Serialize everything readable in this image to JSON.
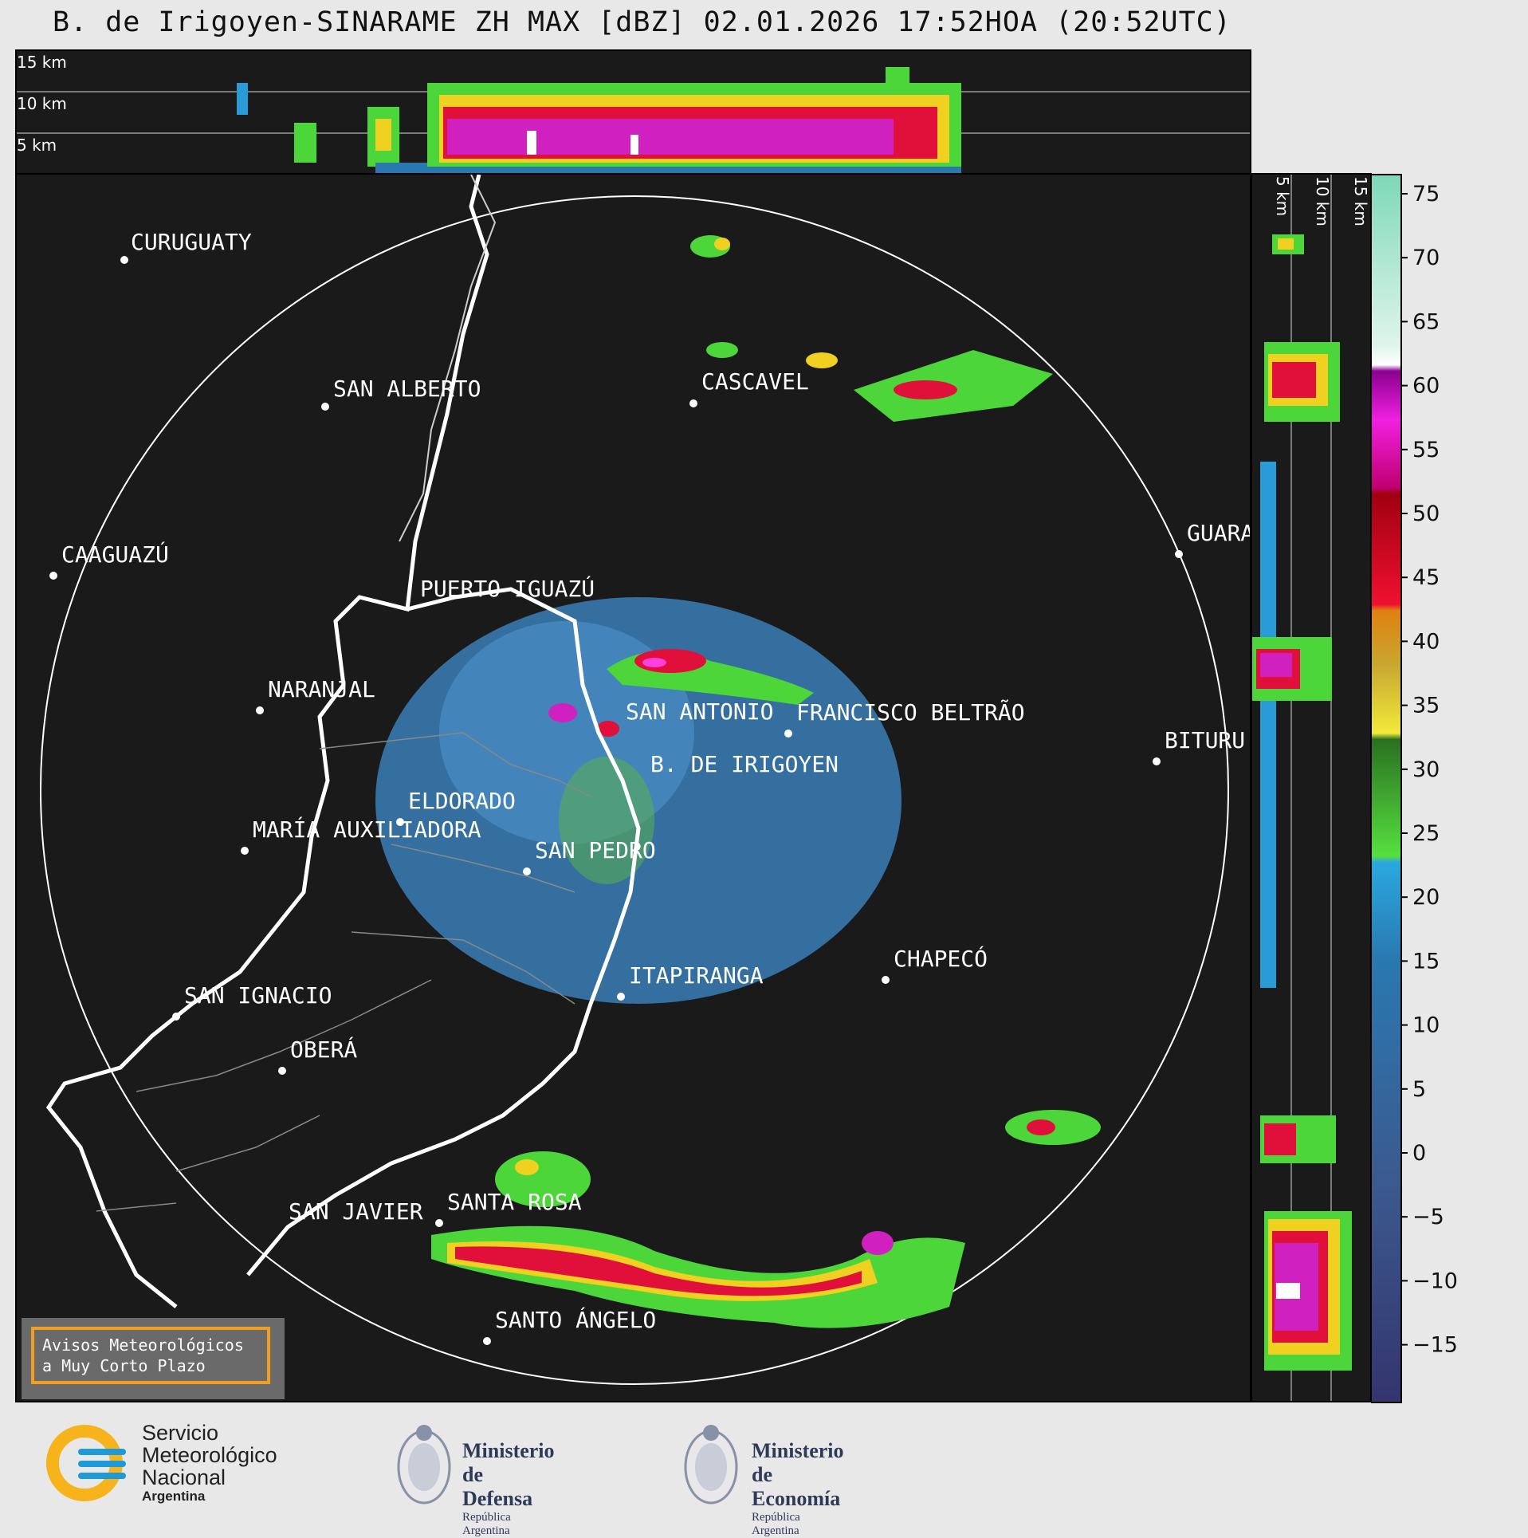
{
  "title": "B. de Irigoyen-SINARAME ZH MAX [dBZ] 02.01.2026 17:52HOA (20:52UTC)",
  "height_labels": [
    "15 km",
    "10 km",
    "5 km"
  ],
  "side_height_labels": [
    "5 km",
    "10 km",
    "15 km"
  ],
  "cities": [
    {
      "name": "CURUGUATY"
    },
    {
      "name": "SAN ALBERTO"
    },
    {
      "name": "CASCAVEL"
    },
    {
      "name": "CAAGUAZÚ"
    },
    {
      "name": "GUARA"
    },
    {
      "name": "PUERTO IGUAZÚ"
    },
    {
      "name": "NARANJAL"
    },
    {
      "name": "SAN ANTONIO"
    },
    {
      "name": "FRANCISCO BELTRÃO"
    },
    {
      "name": "BITURU"
    },
    {
      "name": "B. DE IRIGOYEN"
    },
    {
      "name": "ELDORADO"
    },
    {
      "name": "MARÍA AUXILIADORA"
    },
    {
      "name": "SAN PEDRO"
    },
    {
      "name": "CHAPECÓ"
    },
    {
      "name": "ITAPIRANGA"
    },
    {
      "name": "SAN IGNACIO"
    },
    {
      "name": "OBERÁ"
    },
    {
      "name": "SAN JAVIER"
    },
    {
      "name": "SANTA ROSA"
    },
    {
      "name": "SANTO ÁNGELO"
    }
  ],
  "colorbar": {
    "ticks": [
      "75",
      "70",
      "65",
      "60",
      "55",
      "50",
      "45",
      "40",
      "35",
      "30",
      "25",
      "20",
      "15",
      "10",
      "5",
      "0",
      "−5",
      "−10",
      "−15"
    ]
  },
  "warning": {
    "line1": "Avisos Meteorológicos",
    "line2": "a Muy Corto Plazo"
  },
  "logos": {
    "smn": {
      "line1": "Servicio",
      "line2": "Meteorológico",
      "line3": "Nacional",
      "line4": "Argentina"
    },
    "defensa": {
      "line1": "Ministerio",
      "line2": "de Defensa",
      "line3": "República Argentina"
    },
    "economia": {
      "line1": "Ministerio",
      "line2": "de Economía",
      "line3": "República Argentina"
    }
  },
  "colors": {
    "background": "#1a1a1a",
    "range_ring": "#ffffff",
    "border": "#ffffff",
    "smn_blue": "#1e9ad6",
    "smn_yellow": "#f6b31b"
  }
}
